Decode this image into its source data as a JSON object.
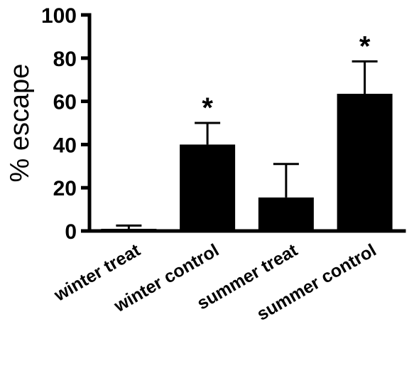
{
  "chart_data": {
    "type": "bar",
    "title": "",
    "xlabel": "",
    "ylabel": "% escape",
    "ylim": [
      0,
      100
    ],
    "yticks": [
      0,
      20,
      40,
      60,
      80,
      100
    ],
    "categories": [
      "winter treat",
      "winter control",
      "summer treat",
      "summer control"
    ],
    "values": [
      1,
      40,
      15.5,
      63.5
    ],
    "errors": [
      1.5,
      10,
      15.5,
      15
    ],
    "annotations": [
      "",
      "*",
      "",
      "*"
    ],
    "grid": false,
    "legend": "none",
    "bar_color": "#000000"
  }
}
